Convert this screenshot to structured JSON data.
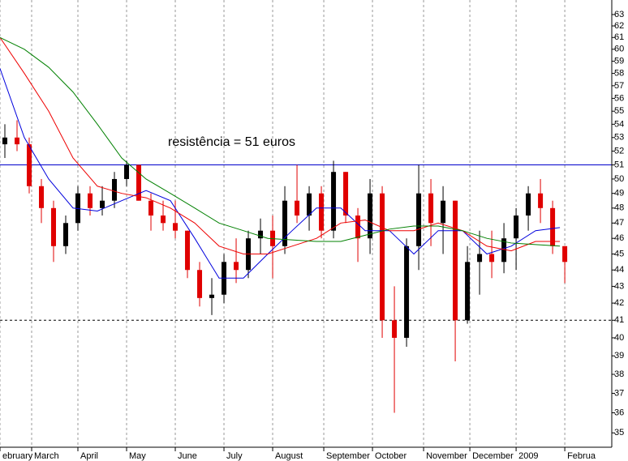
{
  "chart_data": {
    "type": "candlestick",
    "annotation": "resistência = 51 euros",
    "log_scale": true,
    "grid": "x",
    "ylim": [
      34.3,
      64.3
    ],
    "yticks": [
      35,
      36,
      37,
      38,
      39,
      40,
      41,
      42,
      43,
      44,
      45,
      46,
      47,
      48,
      49,
      50,
      51,
      52,
      53,
      54,
      55,
      56,
      57,
      58,
      59,
      60,
      61,
      62,
      63
    ],
    "xlim": [
      0,
      251.3
    ],
    "xticks": [
      {
        "value": 0,
        "label": "ebruary"
      },
      {
        "value": 13,
        "label": "March"
      },
      {
        "value": 32,
        "label": "April"
      },
      {
        "value": 52,
        "label": "May"
      },
      {
        "value": 72,
        "label": "June"
      },
      {
        "value": 92,
        "label": "July"
      },
      {
        "value": 112,
        "label": "August"
      },
      {
        "value": 133,
        "label": "September"
      },
      {
        "value": 153,
        "label": "October"
      },
      {
        "value": 174,
        "label": "November"
      },
      {
        "value": 193,
        "label": "December"
      },
      {
        "value": 212,
        "label": "2009"
      },
      {
        "value": 232,
        "label": "Februa"
      }
    ],
    "up_color": "#000000",
    "down_color": "#e00000",
    "x": [
      2,
      7,
      12,
      17,
      22,
      27,
      32,
      37,
      42,
      47,
      52,
      57,
      62,
      67,
      72,
      77,
      82,
      87,
      92,
      97,
      102,
      107,
      112,
      117,
      122,
      127,
      132,
      137,
      142,
      147,
      152,
      157,
      162,
      167,
      172,
      177,
      182,
      187,
      192,
      197,
      202,
      207,
      212,
      217,
      222,
      227,
      232
    ],
    "open": [
      52.5,
      53,
      52.5,
      49.5,
      48,
      45.5,
      47,
      49,
      48,
      48.5,
      50,
      51,
      48.5,
      47.5,
      47,
      46.5,
      44,
      42.3,
      42.5,
      44.5,
      44,
      46,
      46.5,
      45.5,
      48.5,
      47.5,
      49,
      46.5,
      50.5,
      47.5,
      46,
      49,
      41,
      40,
      45.5,
      49,
      47,
      48.5,
      41,
      44.5,
      45,
      44.5,
      46,
      47.5,
      49,
      48,
      45.5
    ],
    "high": [
      54,
      54.3,
      53,
      50,
      48.5,
      47.5,
      49.5,
      49.5,
      49.5,
      50.5,
      51.3,
      51,
      49,
      48.5,
      48.5,
      46.5,
      44.5,
      43.5,
      45,
      46,
      46.5,
      47.3,
      47.5,
      49.5,
      51,
      49.5,
      49.5,
      51.3,
      50.5,
      48,
      50,
      49.5,
      43,
      46,
      51,
      50,
      49.5,
      48.5,
      45.5,
      46.5,
      46.5,
      47,
      48,
      49.5,
      50,
      48.5,
      45.5
    ],
    "low": [
      51.5,
      52,
      49,
      47,
      44.5,
      45,
      46.5,
      47.5,
      47.5,
      48,
      49.5,
      48.5,
      46.5,
      46.5,
      46,
      43.5,
      41.8,
      41.3,
      42,
      43.2,
      43.5,
      45,
      43.5,
      45,
      47,
      46.5,
      46,
      46,
      47,
      44.5,
      45,
      40,
      36,
      39.5,
      44,
      45.5,
      45,
      38.7,
      40.8,
      42.5,
      43.5,
      43.8,
      44,
      46.5,
      47,
      45,
      43.2
    ],
    "close": [
      53,
      52.5,
      49.5,
      48,
      45.5,
      47,
      49,
      48,
      48.5,
      50,
      51,
      48.5,
      47.5,
      47,
      46.5,
      44,
      42.3,
      42.5,
      44.5,
      44,
      46,
      46.5,
      45.5,
      48.5,
      47.5,
      49,
      46.5,
      50.5,
      47.5,
      46,
      49,
      41,
      40,
      45.5,
      49,
      47,
      48.5,
      41,
      44.5,
      45,
      44.5,
      46,
      47.5,
      49,
      48,
      45.5,
      44.5
    ],
    "ma_x": [
      0,
      10,
      20,
      30,
      40,
      50,
      60,
      70,
      80,
      90,
      100,
      110,
      120,
      130,
      140,
      150,
      160,
      170,
      180,
      190,
      200,
      210,
      220,
      230
    ],
    "lines": [
      {
        "color": "#0000dd",
        "values": [
          58.4,
          53,
          50,
          48,
          47.8,
          48.5,
          49.2,
          48.5,
          46,
          43.5,
          43.5,
          45,
          46.5,
          48,
          48,
          46.5,
          46.5,
          45,
          46.5,
          46.5,
          45,
          45.5,
          46.5,
          46.7
        ]
      },
      {
        "color": "#ee0000",
        "values": [
          61,
          58,
          55,
          51.5,
          49.5,
          49,
          48.7,
          48,
          47,
          45.5,
          45,
          45,
          45.5,
          46,
          47,
          47.2,
          46.5,
          46.5,
          47,
          46.5,
          45.5,
          45.2,
          45.8,
          45.8
        ]
      },
      {
        "color": "#008000",
        "values": [
          61,
          60,
          58.5,
          56.5,
          54,
          51.5,
          50,
          49,
          48,
          47,
          46.5,
          46,
          45.9,
          45.8,
          45.8,
          46.2,
          46.6,
          46.8,
          46.8,
          46.5,
          46,
          45.7,
          45.6,
          45.5
        ]
      }
    ],
    "hlines": [
      {
        "value": 51,
        "color": "#0000cc",
        "dashed": false
      },
      {
        "value": 41,
        "color": "#000000",
        "dashed": true
      }
    ]
  }
}
